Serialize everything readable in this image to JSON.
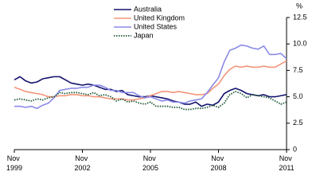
{
  "chart_data": {
    "type": "line",
    "y_unit": "%",
    "x": [
      "1999-11",
      "2000-02",
      "2000-05",
      "2000-08",
      "2000-11",
      "2001-02",
      "2001-05",
      "2001-08",
      "2001-11",
      "2002-02",
      "2002-05",
      "2002-08",
      "2002-11",
      "2003-02",
      "2003-05",
      "2003-08",
      "2003-11",
      "2004-02",
      "2004-05",
      "2004-08",
      "2004-11",
      "2005-02",
      "2005-05",
      "2005-08",
      "2005-11",
      "2006-02",
      "2006-05",
      "2006-08",
      "2006-11",
      "2007-02",
      "2007-05",
      "2007-08",
      "2007-11",
      "2008-02",
      "2008-05",
      "2008-08",
      "2008-11",
      "2009-02",
      "2009-05",
      "2009-08",
      "2009-11",
      "2010-02",
      "2010-05",
      "2010-08",
      "2010-11",
      "2011-02",
      "2011-05",
      "2011-08",
      "2011-11"
    ],
    "series": [
      {
        "name": "Australia",
        "color": "#14146e",
        "linestyle": "solid",
        "values": [
          6.6,
          6.9,
          6.5,
          6.3,
          6.4,
          6.7,
          6.8,
          6.9,
          6.9,
          6.6,
          6.3,
          6.2,
          6.1,
          6.2,
          6.1,
          5.9,
          5.7,
          5.7,
          5.5,
          5.6,
          5.2,
          5.1,
          5.0,
          5.0,
          5.1,
          5.0,
          4.9,
          4.8,
          4.6,
          4.5,
          4.3,
          4.3,
          4.5,
          4.1,
          4.3,
          4.2,
          4.5,
          5.3,
          5.6,
          5.8,
          5.6,
          5.3,
          5.2,
          5.1,
          5.2,
          5.0,
          5.0,
          5.1,
          5.2
        ]
      },
      {
        "name": "United Kingdom",
        "color": "#f4967a",
        "linestyle": "solid",
        "values": [
          5.9,
          5.7,
          5.5,
          5.4,
          5.3,
          5.2,
          5.0,
          5.0,
          5.1,
          5.1,
          5.2,
          5.2,
          5.1,
          5.1,
          5.0,
          5.0,
          4.9,
          4.8,
          4.8,
          4.8,
          4.7,
          4.7,
          4.8,
          4.9,
          5.1,
          5.3,
          5.5,
          5.5,
          5.4,
          5.5,
          5.4,
          5.3,
          5.2,
          5.2,
          5.3,
          5.8,
          6.2,
          7.0,
          7.6,
          7.9,
          7.8,
          7.9,
          7.8,
          7.8,
          7.9,
          7.8,
          7.8,
          8.1,
          8.4
        ]
      },
      {
        "name": "United States",
        "color": "#8a8ae6",
        "linestyle": "solid",
        "values": [
          4.1,
          4.1,
          4.0,
          4.1,
          3.9,
          4.2,
          4.4,
          4.9,
          5.6,
          5.7,
          5.8,
          5.8,
          5.9,
          5.9,
          6.1,
          6.1,
          5.9,
          5.6,
          5.6,
          5.4,
          5.4,
          5.4,
          5.1,
          4.9,
          5.0,
          4.8,
          4.6,
          4.7,
          4.5,
          4.5,
          4.4,
          4.6,
          4.7,
          4.8,
          5.4,
          6.1,
          6.8,
          8.3,
          9.4,
          9.6,
          9.9,
          9.8,
          9.6,
          9.5,
          9.8,
          9.0,
          9.0,
          9.1,
          8.6
        ]
      },
      {
        "name": "Japan",
        "color": "#1f5a38",
        "linestyle": "dotted",
        "values": [
          4.7,
          4.8,
          4.7,
          4.6,
          4.8,
          4.7,
          4.9,
          5.0,
          5.4,
          5.3,
          5.4,
          5.4,
          5.3,
          5.2,
          5.4,
          5.1,
          5.2,
          5.0,
          4.6,
          4.8,
          4.5,
          4.6,
          4.4,
          4.3,
          4.5,
          4.1,
          4.1,
          4.1,
          4.0,
          4.0,
          3.8,
          3.8,
          3.9,
          3.9,
          4.0,
          4.2,
          4.0,
          4.4,
          5.2,
          5.5,
          5.3,
          4.9,
          5.2,
          5.1,
          5.0,
          4.9,
          4.6,
          4.3,
          4.5
        ]
      }
    ],
    "xlim": [
      "1999-11",
      "2011-11"
    ],
    "xticks": [
      {
        "value": "1999-11",
        "label": "Nov 1999"
      },
      {
        "value": "2002-11",
        "label": "Nov 2002"
      },
      {
        "value": "2005-11",
        "label": "Nov 2005"
      },
      {
        "value": "2008-11",
        "label": "Nov 2008"
      },
      {
        "value": "2011-11",
        "label": "Nov 2011"
      }
    ],
    "ylim": [
      0,
      12.5
    ],
    "yticks": [
      0,
      2.5,
      {
        "value": 5,
        "label": "5.0"
      },
      {
        "value": 7.5,
        "label": "7.5"
      },
      {
        "value": 10,
        "label": "10.0"
      },
      12.5
    ],
    "legend": "top-center"
  }
}
